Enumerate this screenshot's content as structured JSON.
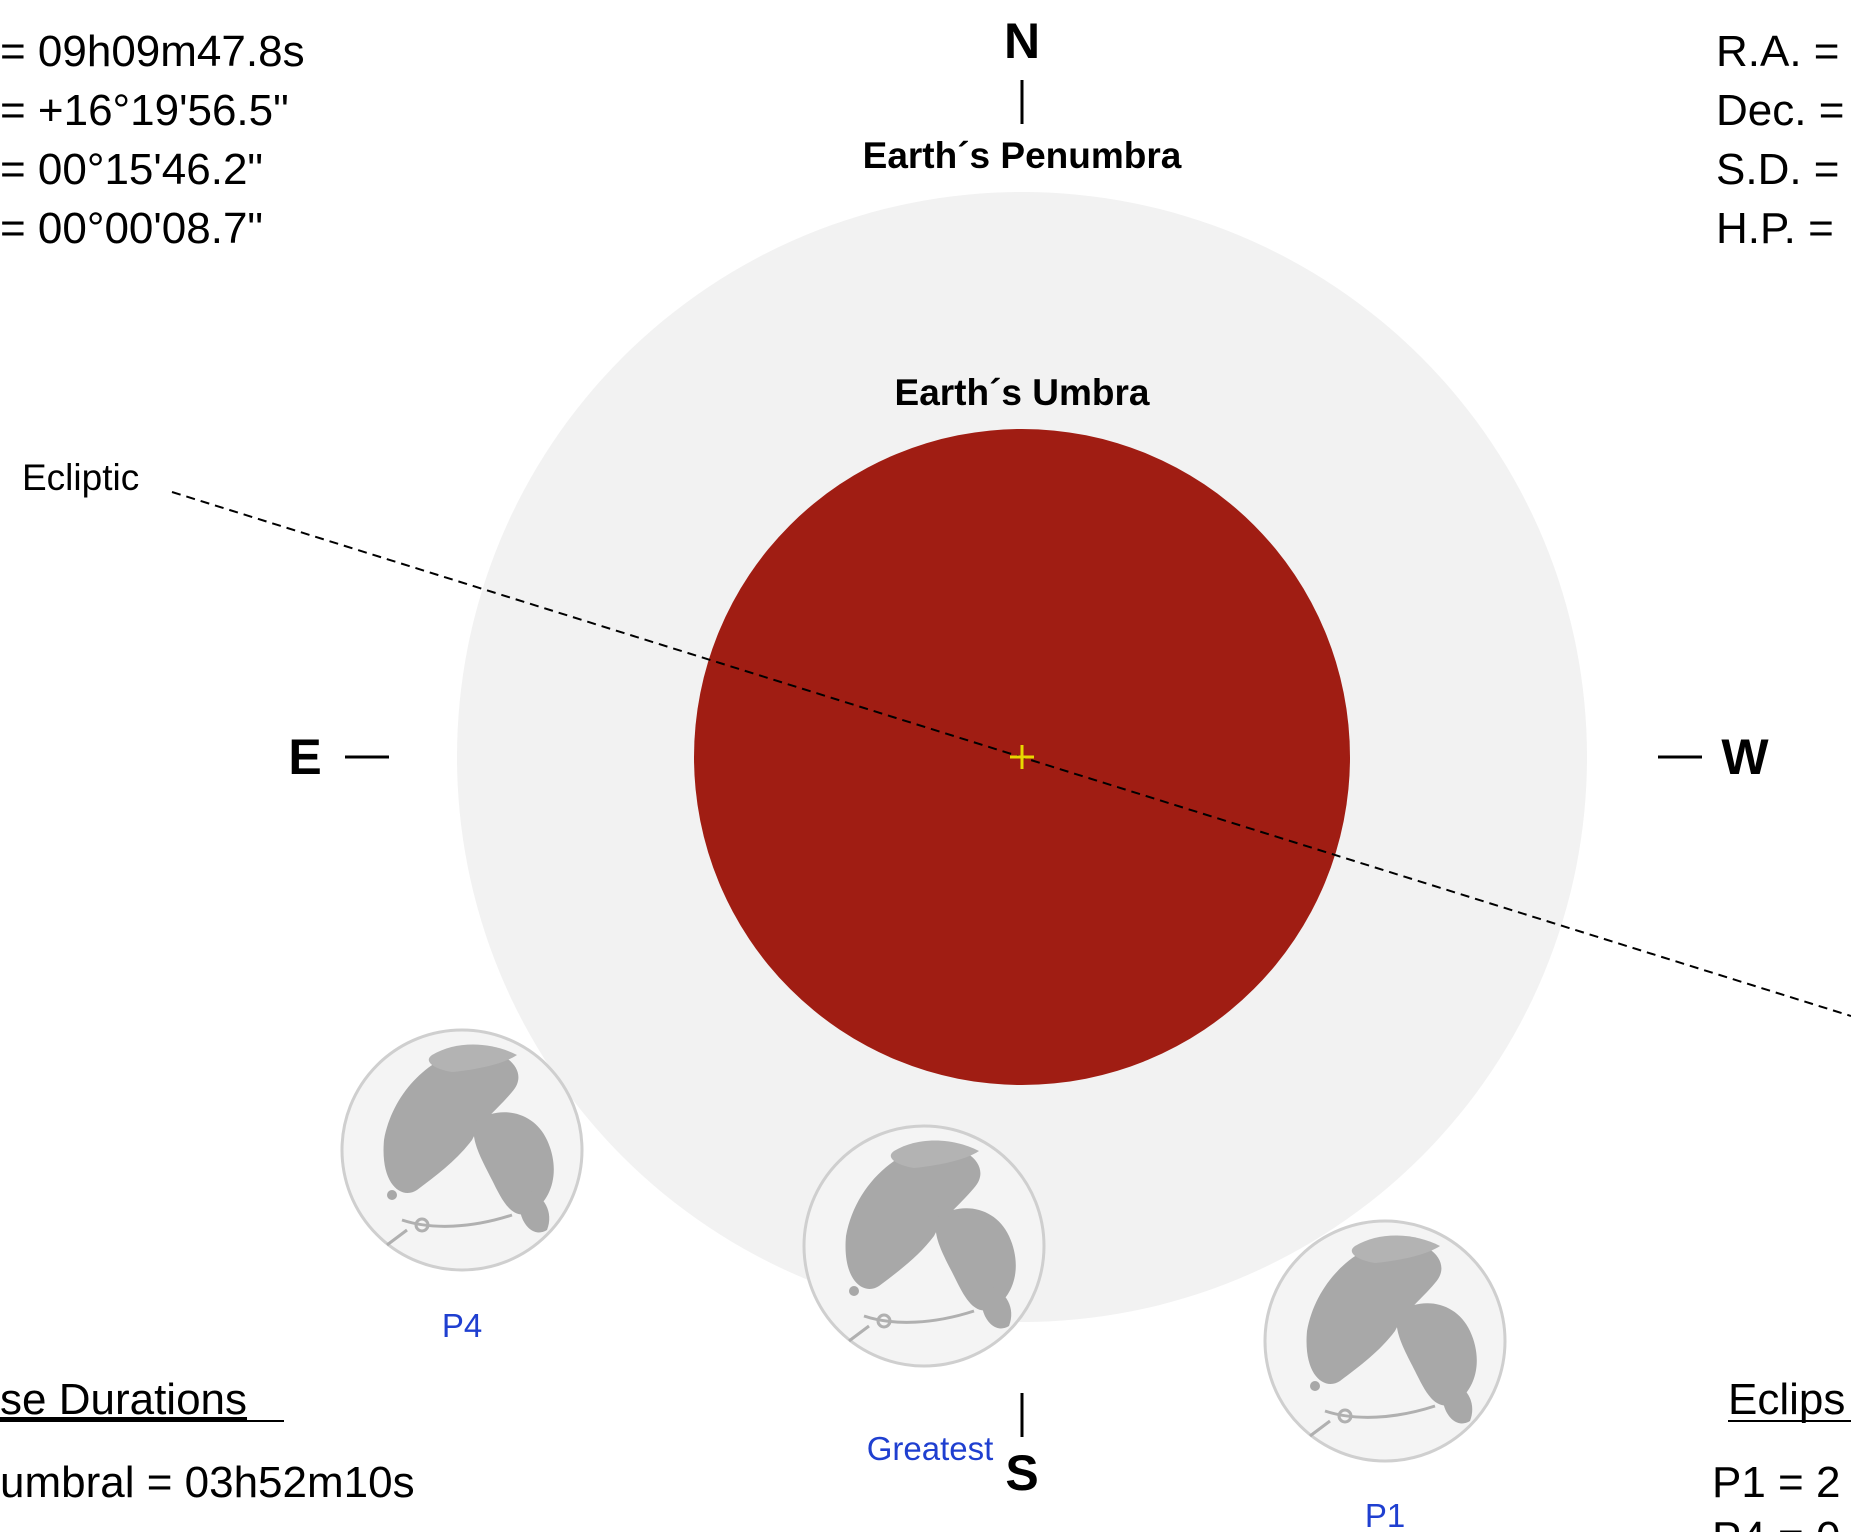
{
  "left_data": [
    "=  09h09m47.8s",
    "= +16°19'56.5\"",
    "=  00°15'46.2\"",
    "=  00°00'08.7\""
  ],
  "right_data": [
    "R.A. =",
    "Dec. =",
    "S.D. =",
    "H.P. ="
  ],
  "directions": {
    "north": "N",
    "south": "S",
    "east": "E",
    "west": "W"
  },
  "labels": {
    "penumbra": "Earth´s Penumbra",
    "umbra": "Earth´s Umbra",
    "ecliptic": "Ecliptic"
  },
  "moons": {
    "p4": "P4",
    "greatest": "Greatest",
    "p1": "P1"
  },
  "durations": {
    "heading": "se Durations",
    "penumbral": "umbral = 03h52m10s"
  },
  "contacts": {
    "heading": "Eclips",
    "p1": "P1 = 2",
    "p4": "P4 = 0"
  },
  "colors": {
    "penumbra": "#f2f2f2",
    "umbra": "#a01d13",
    "moon_label": "#1f3fd0",
    "center_mark": "#e8d800"
  },
  "icons": {
    "moon": "moon-icon",
    "center": "crosshair-icon"
  }
}
